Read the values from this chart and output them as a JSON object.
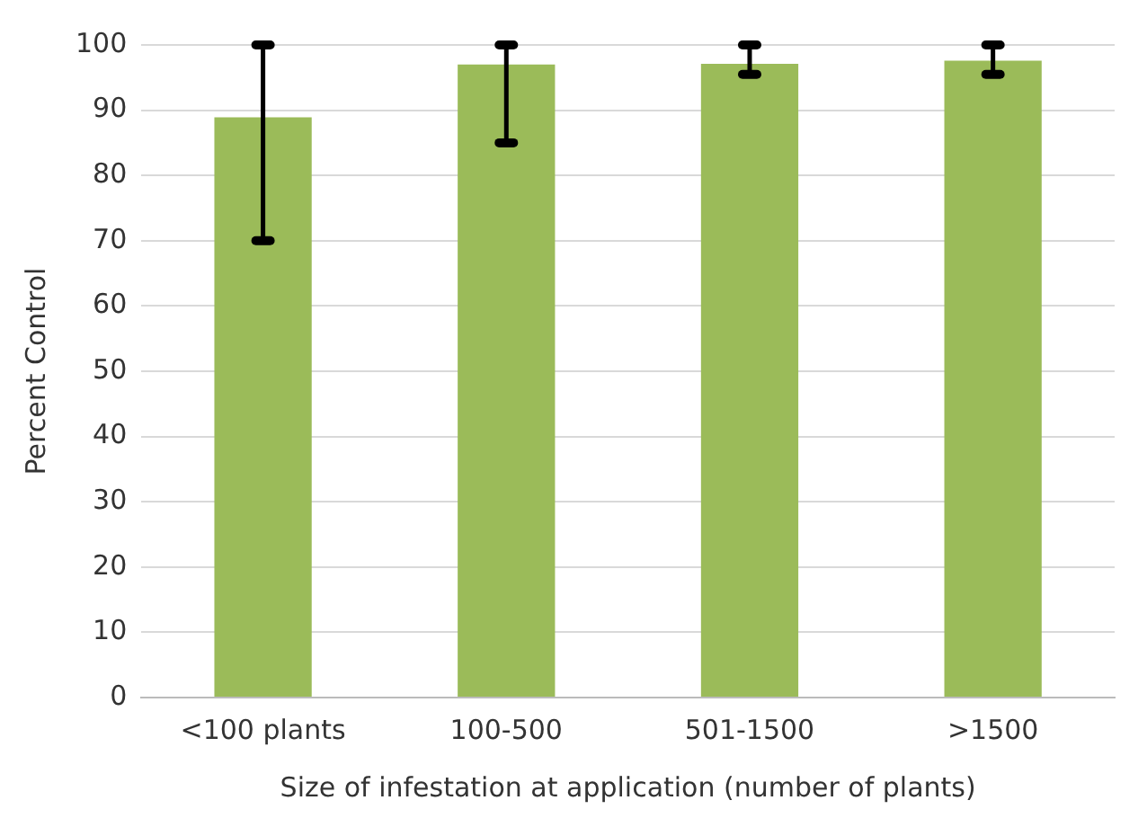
{
  "chart_data": {
    "type": "bar",
    "xlabel": "Size of infestation at application (number of plants)",
    "ylabel": "Percent Control",
    "categories": [
      "<100 plants",
      "100-500",
      "501-1500",
      ">1500"
    ],
    "values": [
      88.9,
      97,
      97.1,
      97.6
    ],
    "errors": [
      [
        70,
        100
      ],
      [
        85,
        100
      ],
      [
        95.5,
        100
      ],
      [
        95.5,
        100
      ]
    ],
    "color": "#9bbb59",
    "ylim": [
      0,
      100
    ],
    "yticks": [
      0,
      10,
      20,
      30,
      40,
      50,
      60,
      70,
      80,
      90,
      100
    ],
    "grid": "y",
    "legend": false
  }
}
